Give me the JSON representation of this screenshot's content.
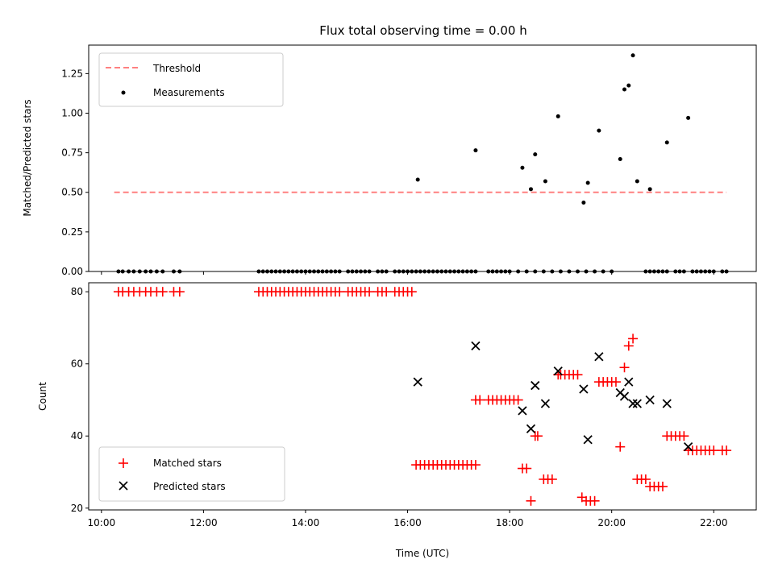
{
  "chart_data": [
    {
      "type": "scatter",
      "title": "Flux total observing time = 0.00 h",
      "xlabel": "",
      "ylabel": "Matched/Predicted stars",
      "ylim": [
        0,
        1.43
      ],
      "yticks": [
        "0.00",
        "0.25",
        "0.50",
        "0.75",
        "1.00",
        "1.25"
      ],
      "ytick_values": [
        0,
        0.25,
        0.5,
        0.75,
        1.0,
        1.25
      ],
      "legend_position": "top-left",
      "threshold": {
        "name": "Threshold",
        "value": 0.5,
        "x_range": [
          "10:15",
          "22:15"
        ],
        "color": "#ff8080"
      },
      "measurements": {
        "name": "Measurements",
        "color": "#000000",
        "points": [
          [
            "10:20",
            0
          ],
          [
            "10:25",
            0
          ],
          [
            "10:32",
            0
          ],
          [
            "10:38",
            0
          ],
          [
            "10:45",
            0
          ],
          [
            "10:52",
            0
          ],
          [
            "10:58",
            0
          ],
          [
            "11:05",
            0
          ],
          [
            "11:12",
            0
          ],
          [
            "11:25",
            0
          ],
          [
            "11:32",
            0
          ],
          [
            "13:05",
            0
          ],
          [
            "13:10",
            0
          ],
          [
            "13:15",
            0
          ],
          [
            "13:20",
            0
          ],
          [
            "13:25",
            0
          ],
          [
            "13:30",
            0
          ],
          [
            "13:35",
            0
          ],
          [
            "13:40",
            0
          ],
          [
            "13:45",
            0
          ],
          [
            "13:50",
            0
          ],
          [
            "13:55",
            0
          ],
          [
            "14:00",
            0
          ],
          [
            "14:05",
            0
          ],
          [
            "14:10",
            0
          ],
          [
            "14:15",
            0
          ],
          [
            "14:20",
            0
          ],
          [
            "14:25",
            0
          ],
          [
            "14:30",
            0
          ],
          [
            "14:35",
            0
          ],
          [
            "14:40",
            0
          ],
          [
            "14:50",
            0
          ],
          [
            "14:55",
            0
          ],
          [
            "15:00",
            0
          ],
          [
            "15:05",
            0
          ],
          [
            "15:10",
            0
          ],
          [
            "15:15",
            0
          ],
          [
            "15:25",
            0
          ],
          [
            "15:30",
            0
          ],
          [
            "15:35",
            0
          ],
          [
            "15:45",
            0
          ],
          [
            "15:50",
            0
          ],
          [
            "15:55",
            0
          ],
          [
            "16:00",
            0
          ],
          [
            "16:05",
            0
          ],
          [
            "16:10",
            0
          ],
          [
            "16:15",
            0
          ],
          [
            "16:20",
            0
          ],
          [
            "16:25",
            0
          ],
          [
            "16:30",
            0
          ],
          [
            "16:35",
            0
          ],
          [
            "16:40",
            0
          ],
          [
            "16:45",
            0
          ],
          [
            "16:50",
            0
          ],
          [
            "16:55",
            0
          ],
          [
            "17:00",
            0
          ],
          [
            "17:05",
            0
          ],
          [
            "17:10",
            0
          ],
          [
            "17:15",
            0
          ],
          [
            "17:20",
            0
          ],
          [
            "17:35",
            0
          ],
          [
            "17:40",
            0
          ],
          [
            "17:45",
            0
          ],
          [
            "17:50",
            0
          ],
          [
            "17:55",
            0
          ],
          [
            "18:00",
            0
          ],
          [
            "18:10",
            0
          ],
          [
            "18:20",
            0
          ],
          [
            "18:30",
            0
          ],
          [
            "18:40",
            0
          ],
          [
            "18:50",
            0
          ],
          [
            "19:00",
            0
          ],
          [
            "19:10",
            0
          ],
          [
            "19:20",
            0
          ],
          [
            "19:30",
            0
          ],
          [
            "19:40",
            0
          ],
          [
            "19:50",
            0
          ],
          [
            "20:00",
            0
          ],
          [
            "20:40",
            0
          ],
          [
            "20:45",
            0
          ],
          [
            "20:50",
            0
          ],
          [
            "20:55",
            0
          ],
          [
            "21:00",
            0
          ],
          [
            "21:05",
            0
          ],
          [
            "21:15",
            0
          ],
          [
            "21:20",
            0
          ],
          [
            "21:25",
            0
          ],
          [
            "21:35",
            0
          ],
          [
            "21:40",
            0
          ],
          [
            "21:45",
            0
          ],
          [
            "21:50",
            0
          ],
          [
            "21:55",
            0
          ],
          [
            "22:00",
            0
          ],
          [
            "22:10",
            0
          ],
          [
            "22:15",
            0
          ],
          [
            "16:12",
            0.58
          ],
          [
            "17:20",
            0.765
          ],
          [
            "18:15",
            0.655
          ],
          [
            "18:25",
            0.52
          ],
          [
            "18:30",
            0.74
          ],
          [
            "18:42",
            0.57
          ],
          [
            "18:57",
            0.98
          ],
          [
            "19:27",
            0.435
          ],
          [
            "19:32",
            0.56
          ],
          [
            "19:45",
            0.89
          ],
          [
            "20:10",
            0.71
          ],
          [
            "20:15",
            1.15
          ],
          [
            "20:20",
            1.175
          ],
          [
            "20:25",
            1.365
          ],
          [
            "20:30",
            0.57
          ],
          [
            "20:45",
            0.52
          ],
          [
            "21:05",
            0.815
          ],
          [
            "21:30",
            0.97
          ]
        ]
      }
    },
    {
      "type": "scatter",
      "title": "",
      "xlabel": "Time (UTC)",
      "ylabel": "Count",
      "ylim": [
        19.5,
        82.5
      ],
      "yticks": [
        "20",
        "40",
        "60",
        "80"
      ],
      "ytick_values": [
        20,
        40,
        60,
        80
      ],
      "xlim": [
        "09:45",
        "22:50"
      ],
      "xticks": [
        "10:00",
        "12:00",
        "14:00",
        "16:00",
        "18:00",
        "20:00",
        "22:00"
      ],
      "legend_position": "bottom-left",
      "series": [
        {
          "name": "Matched stars",
          "marker": "+",
          "color": "#ff0000",
          "points": [
            [
              "10:20",
              80
            ],
            [
              "10:25",
              80
            ],
            [
              "10:32",
              80
            ],
            [
              "10:38",
              80
            ],
            [
              "10:45",
              80
            ],
            [
              "10:52",
              80
            ],
            [
              "10:58",
              80
            ],
            [
              "11:05",
              80
            ],
            [
              "11:12",
              80
            ],
            [
              "11:25",
              80
            ],
            [
              "11:32",
              80
            ],
            [
              "13:05",
              80
            ],
            [
              "13:10",
              80
            ],
            [
              "13:15",
              80
            ],
            [
              "13:20",
              80
            ],
            [
              "13:25",
              80
            ],
            [
              "13:30",
              80
            ],
            [
              "13:35",
              80
            ],
            [
              "13:40",
              80
            ],
            [
              "13:45",
              80
            ],
            [
              "13:50",
              80
            ],
            [
              "13:55",
              80
            ],
            [
              "14:00",
              80
            ],
            [
              "14:05",
              80
            ],
            [
              "14:10",
              80
            ],
            [
              "14:15",
              80
            ],
            [
              "14:20",
              80
            ],
            [
              "14:25",
              80
            ],
            [
              "14:30",
              80
            ],
            [
              "14:35",
              80
            ],
            [
              "14:40",
              80
            ],
            [
              "14:50",
              80
            ],
            [
              "14:55",
              80
            ],
            [
              "15:00",
              80
            ],
            [
              "15:05",
              80
            ],
            [
              "15:10",
              80
            ],
            [
              "15:15",
              80
            ],
            [
              "15:25",
              80
            ],
            [
              "15:30",
              80
            ],
            [
              "15:35",
              80
            ],
            [
              "15:45",
              80
            ],
            [
              "15:50",
              80
            ],
            [
              "15:55",
              80
            ],
            [
              "16:00",
              80
            ],
            [
              "16:05",
              80
            ],
            [
              "16:10",
              32
            ],
            [
              "16:15",
              32
            ],
            [
              "16:20",
              32
            ],
            [
              "16:25",
              32
            ],
            [
              "16:30",
              32
            ],
            [
              "16:35",
              32
            ],
            [
              "16:40",
              32
            ],
            [
              "16:45",
              32
            ],
            [
              "16:50",
              32
            ],
            [
              "16:55",
              32
            ],
            [
              "17:00",
              32
            ],
            [
              "17:05",
              32
            ],
            [
              "17:10",
              32
            ],
            [
              "17:15",
              32
            ],
            [
              "17:20",
              32
            ],
            [
              "17:20",
              50
            ],
            [
              "17:25",
              50
            ],
            [
              "17:35",
              50
            ],
            [
              "17:40",
              50
            ],
            [
              "17:45",
              50
            ],
            [
              "17:50",
              50
            ],
            [
              "17:55",
              50
            ],
            [
              "18:00",
              50
            ],
            [
              "18:05",
              50
            ],
            [
              "18:10",
              50
            ],
            [
              "18:15",
              31
            ],
            [
              "18:20",
              31
            ],
            [
              "18:25",
              22
            ],
            [
              "18:30",
              40
            ],
            [
              "18:33",
              40
            ],
            [
              "18:40",
              28
            ],
            [
              "18:45",
              28
            ],
            [
              "18:50",
              28
            ],
            [
              "18:57",
              57
            ],
            [
              "19:00",
              57
            ],
            [
              "19:05",
              57
            ],
            [
              "19:10",
              57
            ],
            [
              "19:15",
              57
            ],
            [
              "19:20",
              57
            ],
            [
              "19:25",
              23
            ],
            [
              "19:30",
              22
            ],
            [
              "19:35",
              22
            ],
            [
              "19:40",
              22
            ],
            [
              "19:45",
              55
            ],
            [
              "19:50",
              55
            ],
            [
              "19:55",
              55
            ],
            [
              "20:00",
              55
            ],
            [
              "20:05",
              55
            ],
            [
              "20:10",
              37
            ],
            [
              "20:15",
              59
            ],
            [
              "20:20",
              65
            ],
            [
              "20:25",
              67
            ],
            [
              "20:30",
              28
            ],
            [
              "20:35",
              28
            ],
            [
              "20:40",
              28
            ],
            [
              "20:45",
              26
            ],
            [
              "20:50",
              26
            ],
            [
              "20:55",
              26
            ],
            [
              "21:00",
              26
            ],
            [
              "21:05",
              40
            ],
            [
              "21:10",
              40
            ],
            [
              "21:15",
              40
            ],
            [
              "21:20",
              40
            ],
            [
              "21:25",
              40
            ],
            [
              "21:30",
              36
            ],
            [
              "21:35",
              36
            ],
            [
              "21:40",
              36
            ],
            [
              "21:45",
              36
            ],
            [
              "21:50",
              36
            ],
            [
              "21:55",
              36
            ],
            [
              "22:00",
              36
            ],
            [
              "22:10",
              36
            ],
            [
              "22:15",
              36
            ]
          ]
        },
        {
          "name": "Predicted stars",
          "marker": "x",
          "color": "#000000",
          "points": [
            [
              "16:12",
              55
            ],
            [
              "17:20",
              65
            ],
            [
              "18:15",
              47
            ],
            [
              "18:25",
              42
            ],
            [
              "18:30",
              54
            ],
            [
              "18:42",
              49
            ],
            [
              "18:57",
              58
            ],
            [
              "19:27",
              53
            ],
            [
              "19:32",
              39
            ],
            [
              "19:45",
              62
            ],
            [
              "20:10",
              52
            ],
            [
              "20:15",
              51
            ],
            [
              "20:20",
              55
            ],
            [
              "20:25",
              49
            ],
            [
              "20:30",
              49
            ],
            [
              "20:45",
              50
            ],
            [
              "21:05",
              49
            ],
            [
              "21:30",
              37
            ]
          ]
        }
      ]
    }
  ]
}
